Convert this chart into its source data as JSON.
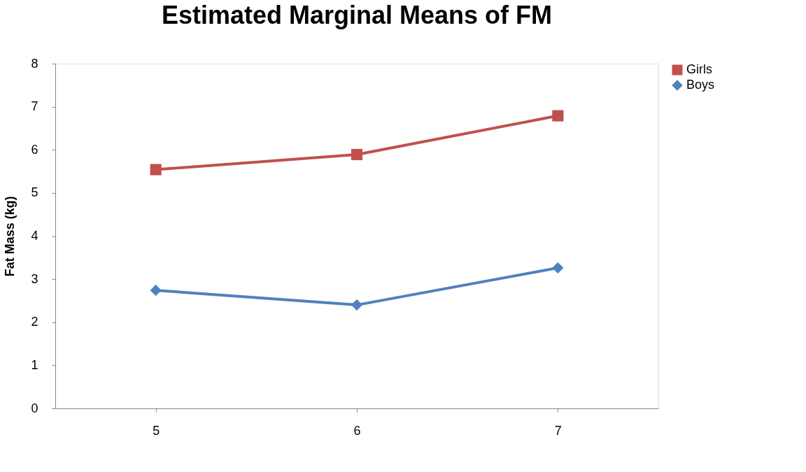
{
  "chart_data": {
    "type": "line",
    "title": "Estimated Marginal Means of FM",
    "ylabel": "Fat Mass (kg)",
    "categories": [
      "5",
      "6",
      "7"
    ],
    "series": [
      {
        "name": "Girls",
        "color": "#c0504d",
        "marker": "square",
        "values": [
          5.54,
          5.89,
          6.79
        ]
      },
      {
        "name": "Boys",
        "color": "#4f81bd",
        "marker": "diamond",
        "values": [
          2.74,
          2.4,
          3.26
        ]
      }
    ],
    "ylim": [
      0,
      8
    ],
    "yticks": [
      0,
      1,
      2,
      3,
      4,
      5,
      6,
      7,
      8
    ],
    "grid": false,
    "legend": "right",
    "line_style": "solid"
  }
}
